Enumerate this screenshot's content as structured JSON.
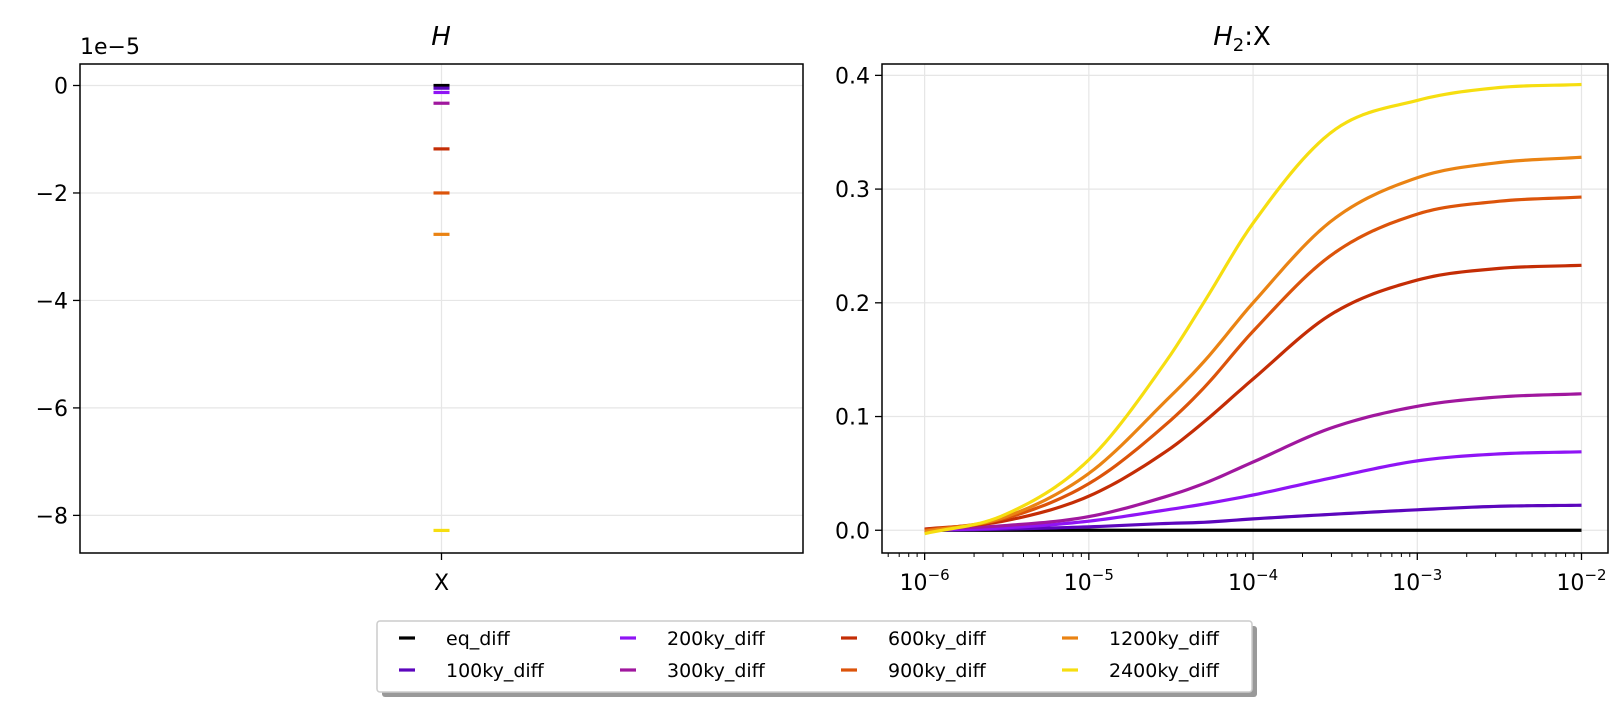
{
  "chart_data": [
    {
      "type": "scatter",
      "title_main": "H",
      "title_sub": "",
      "title_suffix": "",
      "categories": [
        "X"
      ],
      "y_offset_label": "1e−5",
      "y_scale_factor": 1e-05,
      "ylim": [
        -8.7,
        0.4
      ],
      "yticks": [
        0,
        -2,
        -4,
        -6,
        -8
      ],
      "ytick_labels": [
        "0",
        "−2",
        "−4",
        "−6",
        "−8"
      ],
      "grid": true,
      "series": [
        {
          "name": "eq_diff",
          "color": "#000000",
          "values": [
            0.0
          ]
        },
        {
          "name": "100ky_diff",
          "color": "#5c06bd",
          "values": [
            -0.05
          ]
        },
        {
          "name": "200ky_diff",
          "color": "#8f14f5",
          "values": [
            -0.13
          ]
        },
        {
          "name": "300ky_diff",
          "color": "#a0179e",
          "values": [
            -0.33
          ]
        },
        {
          "name": "600ky_diff",
          "color": "#c42d05",
          "values": [
            -1.18
          ]
        },
        {
          "name": "900ky_diff",
          "color": "#dc540a",
          "values": [
            -2.0
          ]
        },
        {
          "name": "1200ky_diff",
          "color": "#ea8313",
          "values": [
            -2.77
          ]
        },
        {
          "name": "2400ky_diff",
          "color": "#f6de10",
          "values": [
            -8.28
          ]
        }
      ]
    },
    {
      "type": "line",
      "title_main": "H",
      "title_sub": "2",
      "title_suffix": ":X",
      "xscale": "log",
      "xlim": [
        5.5e-07,
        0.0145
      ],
      "xticks": [
        1e-06,
        1e-05,
        0.0001,
        0.001,
        0.01
      ],
      "xtick_labels": [
        {
          "base": "10",
          "exp": "−6"
        },
        {
          "base": "10",
          "exp": "−5"
        },
        {
          "base": "10",
          "exp": "−4"
        },
        {
          "base": "10",
          "exp": "−3"
        },
        {
          "base": "10",
          "exp": "−2"
        }
      ],
      "ylim": [
        -0.02,
        0.41
      ],
      "yticks": [
        0.0,
        0.1,
        0.2,
        0.3,
        0.4
      ],
      "ytick_labels": [
        "0.0",
        "0.1",
        "0.2",
        "0.3",
        "0.4"
      ],
      "grid": true,
      "x": [
        1e-06,
        3e-06,
        1e-05,
        3e-05,
        5e-05,
        0.0001,
        0.0003,
        0.001,
        0.003,
        0.01
      ],
      "series": [
        {
          "name": "eq_diff",
          "color": "#000000",
          "values": [
            0,
            0,
            0,
            0,
            0,
            0,
            0,
            0,
            0,
            0
          ]
        },
        {
          "name": "100ky_diff",
          "color": "#5c06bd",
          "values": [
            0.0,
            0.001,
            0.003,
            0.006,
            0.007,
            0.01,
            0.014,
            0.018,
            0.021,
            0.022
          ]
        },
        {
          "name": "200ky_diff",
          "color": "#8f14f5",
          "values": [
            0.0,
            0.002,
            0.008,
            0.018,
            0.023,
            0.031,
            0.046,
            0.061,
            0.067,
            0.069
          ]
        },
        {
          "name": "300ky_diff",
          "color": "#a0179e",
          "values": [
            0.001,
            0.004,
            0.012,
            0.03,
            0.041,
            0.06,
            0.09,
            0.109,
            0.117,
            0.12
          ]
        },
        {
          "name": "600ky_diff",
          "color": "#c42d05",
          "values": [
            0.001,
            0.008,
            0.03,
            0.07,
            0.095,
            0.133,
            0.19,
            0.22,
            0.23,
            0.233
          ]
        },
        {
          "name": "900ky_diff",
          "color": "#dc540a",
          "values": [
            0.0,
            0.01,
            0.041,
            0.094,
            0.125,
            0.175,
            0.242,
            0.278,
            0.289,
            0.293
          ]
        },
        {
          "name": "1200ky_diff",
          "color": "#ea8313",
          "values": [
            -0.001,
            0.011,
            0.05,
            0.115,
            0.148,
            0.2,
            0.272,
            0.31,
            0.323,
            0.328
          ]
        },
        {
          "name": "2400ky_diff",
          "color": "#f6de10",
          "values": [
            -0.003,
            0.013,
            0.062,
            0.15,
            0.2,
            0.27,
            0.35,
            0.378,
            0.389,
            0.392
          ]
        }
      ]
    }
  ],
  "legend": {
    "placement": "bottom-center",
    "ncol": 4,
    "entries": [
      {
        "label": "eq_diff",
        "color": "#000000"
      },
      {
        "label": "100ky_diff",
        "color": "#5c06bd"
      },
      {
        "label": "200ky_diff",
        "color": "#8f14f5"
      },
      {
        "label": "300ky_diff",
        "color": "#a0179e"
      },
      {
        "label": "600ky_diff",
        "color": "#c42d05"
      },
      {
        "label": "900ky_diff",
        "color": "#dc540a"
      },
      {
        "label": "1200ky_diff",
        "color": "#ea8313"
      },
      {
        "label": "2400ky_diff",
        "color": "#f6de10"
      }
    ]
  }
}
